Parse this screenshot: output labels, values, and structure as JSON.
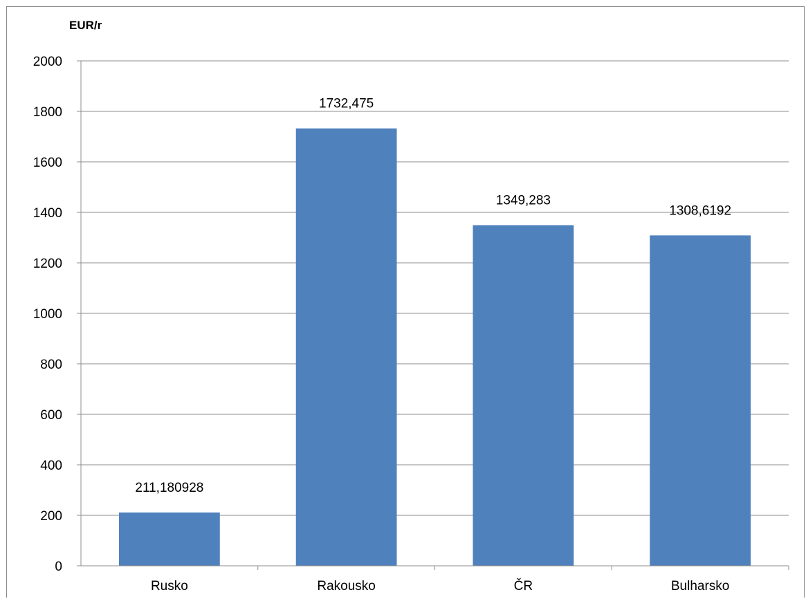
{
  "chart_data": {
    "type": "bar",
    "title": "",
    "xlabel": "",
    "ylabel": "EUR/r",
    "categories": [
      "Rusko",
      "Rakousko",
      "ČR",
      "Bulharsko"
    ],
    "values": [
      211.180928,
      1732.475,
      1349.283,
      1308.6192
    ],
    "data_labels": [
      "211,180928",
      "1732,475",
      "1349,283",
      "1308,6192"
    ],
    "ylim": [
      0,
      2000
    ],
    "yticks": [
      0,
      200,
      400,
      600,
      800,
      1000,
      1200,
      1400,
      1600,
      1800,
      2000
    ],
    "grid": true,
    "legend": "none",
    "colors": {
      "bar": "#4f81bd",
      "grid": "#8c8c8c",
      "axis": "#8c8c8c"
    }
  }
}
